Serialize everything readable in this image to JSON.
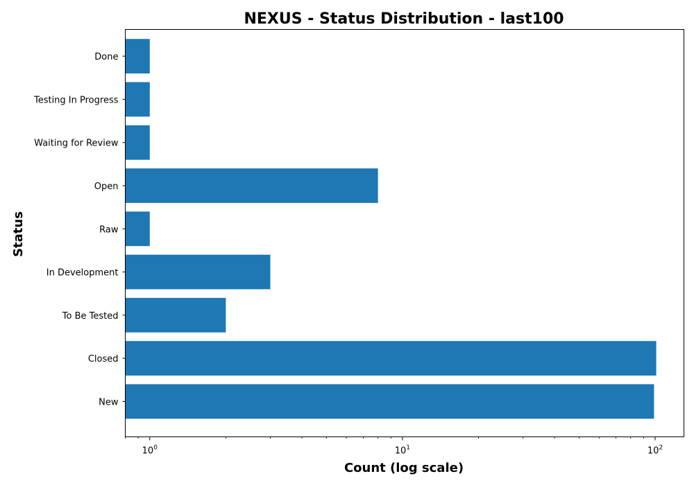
{
  "chart_data": {
    "type": "bar",
    "orientation": "horizontal",
    "title": "NEXUS - Status Distribution - last100",
    "xlabel": "Count (log scale)",
    "ylabel": "Status",
    "x_scale": "log",
    "xlim": [
      0.8,
      130
    ],
    "x_ticks": [
      {
        "value": 1,
        "base": "10",
        "exp": "0"
      },
      {
        "value": 10,
        "base": "10",
        "exp": "1"
      },
      {
        "value": 100,
        "base": "10",
        "exp": "2"
      }
    ],
    "categories": [
      "New",
      "Closed",
      "To Be Tested",
      "In Development",
      "Raw",
      "Open",
      "Waiting for Review",
      "Testing In Progress",
      "Done"
    ],
    "values": [
      99,
      101,
      2,
      3,
      1,
      8,
      1,
      1,
      1
    ],
    "bar_color": "#1f77b4",
    "grid": false,
    "legend": "none"
  }
}
